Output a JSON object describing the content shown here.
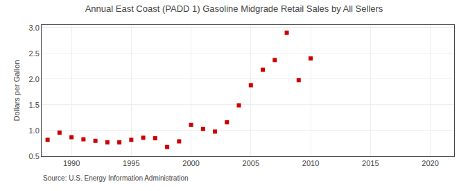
{
  "chart_data": {
    "type": "scatter",
    "title": "Annual East Coast (PADD 1) Gasoline Midgrade Retail Sales by All Sellers",
    "ylabel": "Dollars per Gallon",
    "annotations": [
      "Source: U.S. Energy Information Administration"
    ],
    "x": [
      1988,
      1989,
      1990,
      1991,
      1992,
      1993,
      1994,
      1995,
      1996,
      1997,
      1998,
      1999,
      2000,
      2001,
      2002,
      2003,
      2004,
      2005,
      2006,
      2007,
      2008,
      2009,
      2010
    ],
    "values": [
      0.82,
      0.96,
      0.87,
      0.83,
      0.8,
      0.77,
      0.77,
      0.82,
      0.86,
      0.85,
      0.68,
      0.79,
      1.11,
      1.03,
      0.98,
      1.16,
      1.49,
      1.88,
      2.18,
      2.37,
      2.9,
      1.98,
      2.4
    ],
    "color": "#cc0000",
    "marker": "square",
    "xlim": [
      1987.5,
      2022
    ],
    "xticks": [
      1990,
      1995,
      2000,
      2005,
      2010,
      2015,
      2020
    ],
    "ylim": [
      0.5,
      3.05
    ],
    "yticks": [
      0.5,
      {
        "value": 1,
        "label": "1.0"
      },
      1.5,
      {
        "value": 2,
        "label": "2.0"
      },
      2.5,
      {
        "value": 3,
        "label": "3.0"
      }
    ],
    "grid": true
  }
}
